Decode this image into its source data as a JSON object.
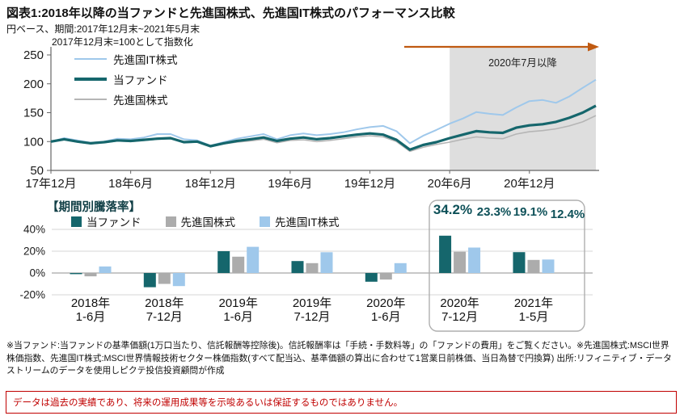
{
  "header": {
    "title": "図表1:2018年以降の当ファンドと先進国株式、先進国IT株式のパフォーマンス比較",
    "subtitle": "円ベース、期間:2017年12月末~2021年5月末",
    "index_note": "2017年12月末=100として指数化"
  },
  "colors": {
    "fund": "#15666C",
    "world_line": "#B5B5B5",
    "world_bar": "#ACACAC",
    "it": "#9FC8EB",
    "arrow": "#C05A11",
    "shade": "#DEDEDE",
    "callout": "#0D5058",
    "warning": "#C00000"
  },
  "chart_data": [
    {
      "type": "line",
      "title": "2017年12月末=100として指数化",
      "x_tick_labels": [
        "17年12月",
        "18年6月",
        "18年12月",
        "19年6月",
        "19年12月",
        "20年6月",
        "20年12月"
      ],
      "y_ticks": [
        250,
        200,
        150,
        100,
        50
      ],
      "ylim": [
        50,
        250
      ],
      "annotation": "2020年7月以降",
      "annotation_note": "shaded region from 2020年6月末 to end of chart with orange right arrow on top",
      "x_note": "monthly index values, 2017年12月末〜2021年5月末, 2017年12月末=100",
      "legend_position": "top-left inside plot",
      "series": [
        {
          "name": "先進国IT株式",
          "color": "#9FC8EB",
          "values": [
            100,
            106,
            102,
            98,
            100,
            105,
            104,
            107,
            113,
            113,
            104,
            102,
            93,
            99,
            105,
            109,
            113,
            104,
            111,
            114,
            111,
            113,
            116,
            121,
            125,
            127,
            118,
            97,
            110,
            120,
            131,
            140,
            151,
            148,
            146,
            159,
            170,
            172,
            167,
            178,
            193,
            207
          ]
        },
        {
          "name": "当ファンド",
          "color": "#15666C",
          "values": [
            100,
            104,
            100,
            97,
            99,
            102,
            101,
            103,
            105,
            106,
            99,
            100,
            92,
            97,
            101,
            104,
            107,
            101,
            105,
            107,
            104,
            106,
            109,
            112,
            114,
            112,
            103,
            86,
            94,
            99,
            106,
            112,
            118,
            116,
            115,
            124,
            128,
            130,
            134,
            141,
            150,
            162
          ]
        },
        {
          "name": "先進国株式",
          "color": "#B5B5B5",
          "values": [
            100,
            103,
            99,
            96,
            98,
            101,
            100,
            102,
            104,
            105,
            98,
            99,
            91,
            96,
            99,
            101,
            104,
            98,
            102,
            103,
            100,
            102,
            105,
            108,
            110,
            108,
            100,
            83,
            90,
            95,
            99,
            104,
            108,
            106,
            105,
            113,
            117,
            119,
            122,
            127,
            134,
            145
          ]
        }
      ]
    },
    {
      "type": "bar",
      "title": "【期間別騰落率】",
      "categories": [
        [
          "2018年",
          "1-6月"
        ],
        [
          "2018年",
          "7-12月"
        ],
        [
          "2019年",
          "1-6月"
        ],
        [
          "2019年",
          "7-12月"
        ],
        [
          "2020年",
          "1-6月"
        ],
        [
          "2020年",
          "7-12月"
        ],
        [
          "2021年",
          "1-5月"
        ]
      ],
      "y_tick_labels": [
        "40%",
        "20%",
        "0%",
        "-20%"
      ],
      "grid_values": [
        40,
        20,
        0,
        -20
      ],
      "ylim": [
        -20,
        40
      ],
      "highlight_groups": [
        "2020年7-12月",
        "2021年1-5月"
      ],
      "series": [
        {
          "name": "当ファンド",
          "color": "#15666C",
          "values": [
            -1,
            -13,
            20,
            11,
            -8,
            34.2,
            19.1
          ]
        },
        {
          "name": "先進国株式",
          "color": "#ACACAC",
          "values": [
            -3,
            -10,
            15,
            9,
            -6,
            19.5,
            12.0
          ]
        },
        {
          "name": "先進国IT株式",
          "color": "#9FC8EB",
          "values": [
            6,
            -12,
            24,
            19,
            9,
            23.3,
            12.4
          ]
        }
      ]
    }
  ],
  "bar_section": {
    "title": "【期間別騰落率】",
    "callouts": [
      "34.2%",
      "23.3%",
      "19.1%",
      "12.4%"
    ]
  },
  "footnote": "※当ファンド:当ファンドの基準価額(1万口当たり、信託報酬等控除後)。信託報酬率は「手続・手数料等」の「ファンドの費用」をご覧ください。※先進国株式:MSCI世界株価指数、先進国IT株式:MSCI世界情報技術セクター株価指数(すべて配当込、基準価額の算出に合わせて1営業日前株価、当日為替で円換算) 出所:リフィニティブ・データストリームのデータを使用しピクテ投信投資顧問が作成",
  "warning": "データは過去の実績であり、将来の運用成果等を示唆あるいは保証するものではありません。"
}
